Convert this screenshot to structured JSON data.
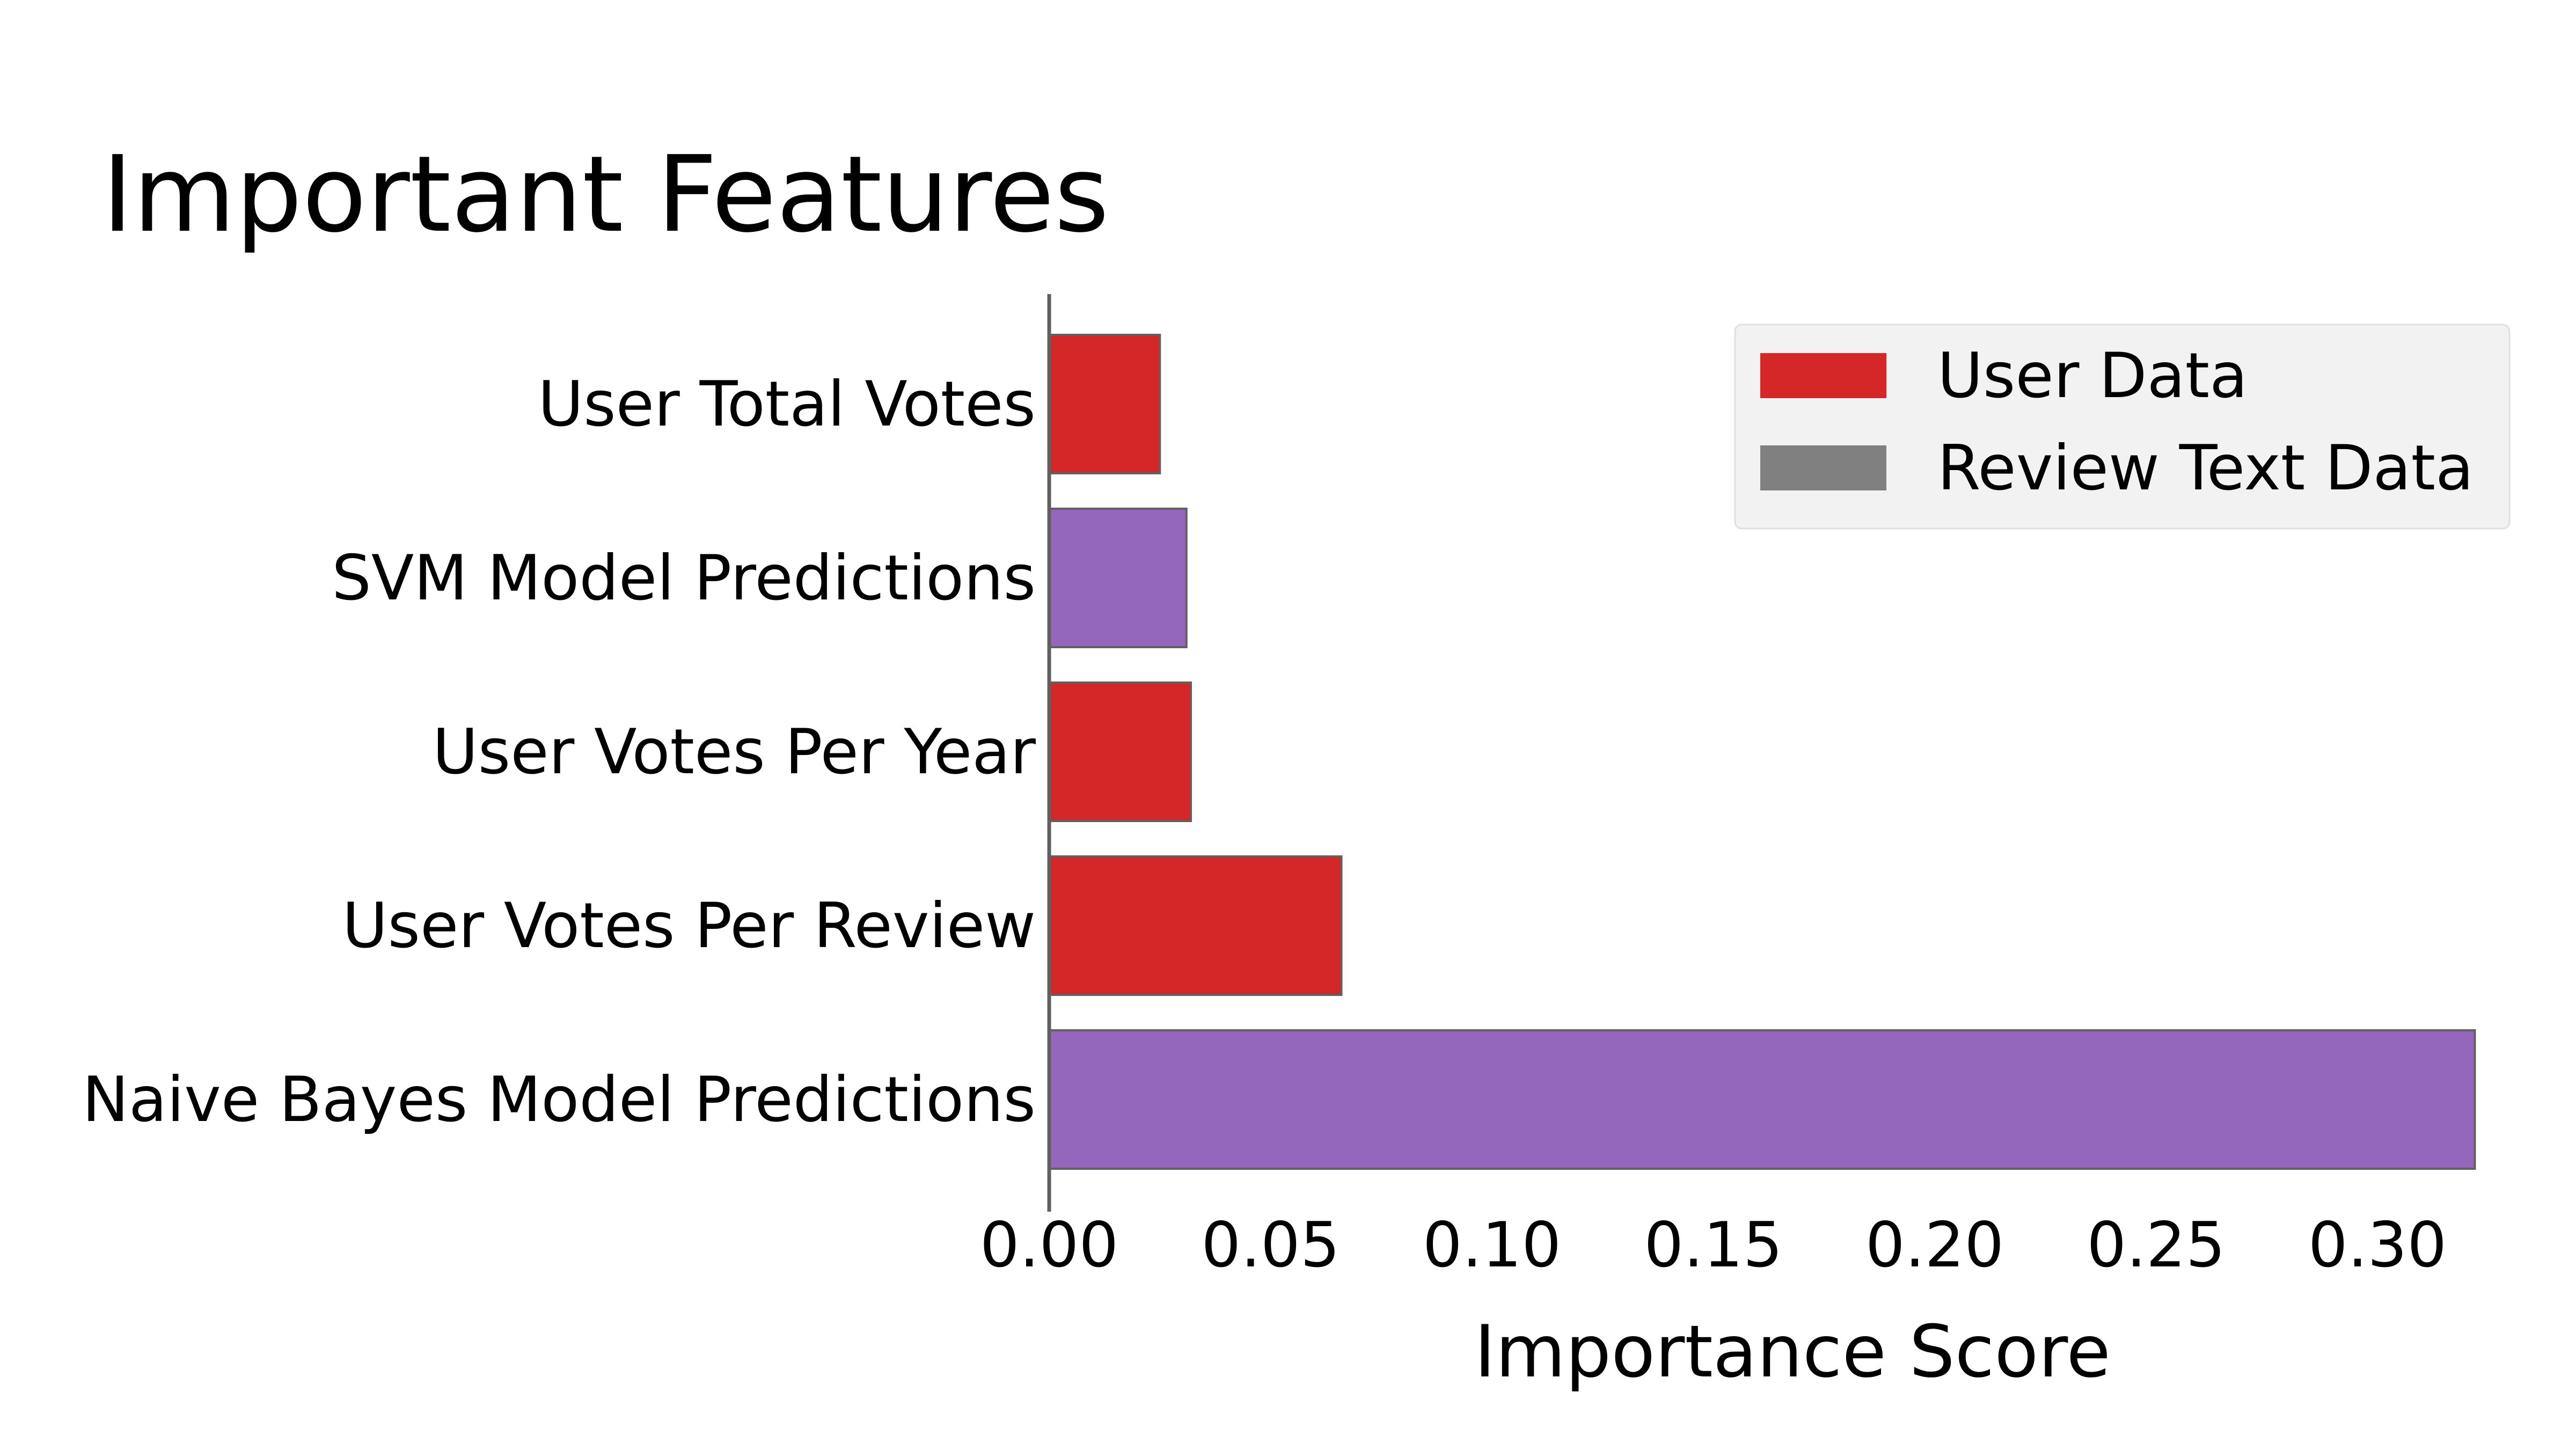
{
  "chart_data": {
    "type": "bar",
    "orientation": "horizontal",
    "title": "Important Features",
    "xlabel": "Importance Score",
    "ylabel": "",
    "xlim": [
      0,
      0.322
    ],
    "xticks": [
      0.0,
      0.05,
      0.1,
      0.15,
      0.2,
      0.25,
      0.3
    ],
    "xtick_labels": [
      "0.00",
      "0.05",
      "0.10",
      "0.15",
      "0.20",
      "0.25",
      "0.30"
    ],
    "grid": false,
    "bars": [
      {
        "label": "User Total Votes",
        "value": 0.025,
        "color": "#d62728"
      },
      {
        "label": "SVM Model Predictions",
        "value": 0.031,
        "color": "#9467bd"
      },
      {
        "label": "User Votes Per Year",
        "value": 0.032,
        "color": "#d62728"
      },
      {
        "label": "User Votes Per Review",
        "value": 0.066,
        "color": "#d62728"
      },
      {
        "label": "Naive Bayes Model Predictions",
        "value": 0.322,
        "color": "#9467bd"
      }
    ],
    "legend": {
      "placement": "top-right",
      "entries": [
        {
          "label": "User Data",
          "color": "#d62728"
        },
        {
          "label": "Review Text Data",
          "color": "#808080"
        }
      ]
    },
    "colors": {
      "user_data": "#d62728",
      "model_predictions": "#9467bd",
      "review_text_data": "#808080",
      "axis": "#606060",
      "bar_edge": "#606060",
      "legend_bg": "#f2f2f2"
    }
  }
}
